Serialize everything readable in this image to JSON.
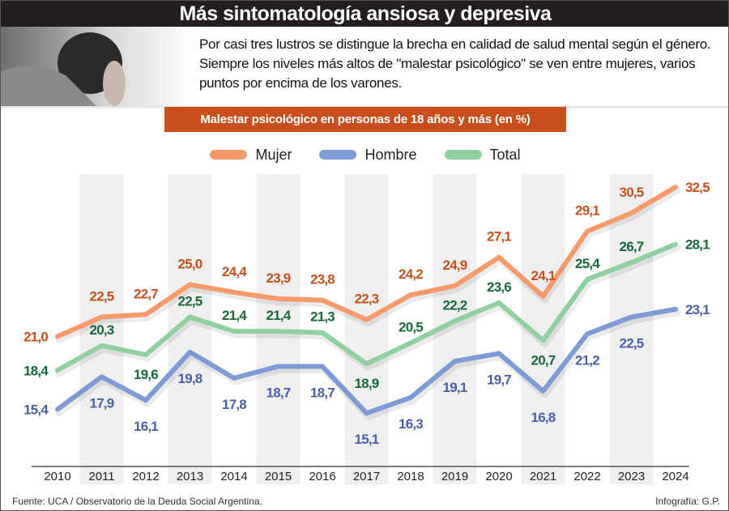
{
  "header": {
    "title": "Más sintomatología ansiosa y depresiva",
    "intro": "Por casi tres lustros se distingue la brecha en calidad de salud mental según el género. Siempre los niveles más altos de \"malestar psicológico\" se ven entre mujeres, varios puntos por encima de los varones."
  },
  "footer": {
    "source": "Fuente: UCA / Observatorio de la Deuda Social Argentina.",
    "credit": "Infografía: G.P."
  },
  "chart_data": {
    "type": "line",
    "title": "Malestar psicológico en personas de 18 años y más (en %)",
    "x": [
      "2010",
      "2011",
      "2012",
      "2013",
      "2014",
      "2015",
      "2016",
      "2017",
      "2018",
      "2019",
      "2020",
      "2021",
      "2022",
      "2023",
      "2024"
    ],
    "ylim": [
      11,
      33.5
    ],
    "grid": false,
    "legend_position": "top-center",
    "alternating_column_shading": true,
    "series": [
      {
        "name": "Mujer",
        "color": "#f79a6a",
        "label_color": "#c9501c",
        "values": [
          21.0,
          22.5,
          22.7,
          25.0,
          24.4,
          23.9,
          23.8,
          22.3,
          24.2,
          24.9,
          27.1,
          24.1,
          29.1,
          30.5,
          32.5
        ],
        "labels": [
          "21,0",
          "22,5",
          "22,7",
          "25,0",
          "24,4",
          "23,9",
          "23,8",
          "22,3",
          "24,2",
          "24,9",
          "27,1",
          "24,1",
          "29,1",
          "30,5",
          "32,5"
        ]
      },
      {
        "name": "Hombre",
        "color": "#7f9bd6",
        "label_color": "#4a5fa8",
        "values": [
          15.4,
          17.9,
          16.1,
          19.8,
          17.8,
          18.7,
          18.7,
          15.1,
          16.3,
          19.1,
          19.7,
          16.8,
          21.2,
          22.5,
          23.1
        ],
        "labels": [
          "15,4",
          "17,9",
          "16,1",
          "19,8",
          "17,8",
          "18,7",
          "18,7",
          "15,1",
          "16,3",
          "19,1",
          "19,7",
          "16,8",
          "21,2",
          "22,5",
          "23,1"
        ]
      },
      {
        "name": "Total",
        "color": "#8fd0a0",
        "label_color": "#17683a",
        "values": [
          18.4,
          20.3,
          19.6,
          22.5,
          21.4,
          21.4,
          21.3,
          18.9,
          20.5,
          22.2,
          23.6,
          20.7,
          25.4,
          26.7,
          28.1
        ],
        "labels": [
          "18,4",
          "20,3",
          "19,6",
          "22,5",
          "21,4",
          "21,4",
          "21,3",
          "18,9",
          "20,5",
          "22,2",
          "23,6",
          "20,7",
          "25,4",
          "26,7",
          "28,1"
        ]
      }
    ]
  }
}
